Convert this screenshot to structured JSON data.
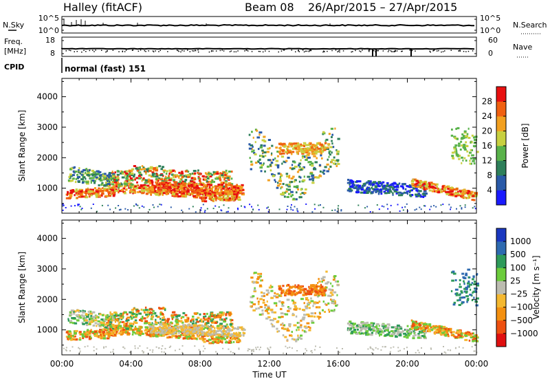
{
  "header": {
    "station": "Halley (fitACF)",
    "beam": "Beam 08",
    "date_range": "26/Apr/2015 – 27/Apr/2015"
  },
  "noise_panel": {
    "left_label": "N.Sky",
    "right_label": "N.Search",
    "left_ticks": [
      "10^5",
      "10^0"
    ],
    "right_ticks": [
      "10^5",
      "10^0"
    ]
  },
  "freq_panel": {
    "left_label": "Freq.",
    "left_unit": "[MHz]",
    "right_label": "Nave",
    "left_ticks": [
      "18",
      "8"
    ],
    "right_ticks": [
      "60",
      "0"
    ]
  },
  "cpid": {
    "label": "CPID",
    "value": "normal (fast) 151"
  },
  "x_axis": {
    "label": "Time UT",
    "ticks": [
      "00:00",
      "04:00",
      "08:00",
      "12:00",
      "16:00",
      "20:00",
      "00:00"
    ]
  },
  "colors": {
    "power": [
      "#1a1aff",
      "#2a5aa8",
      "#2e7f5a",
      "#59b24a",
      "#c8d040",
      "#f2a020",
      "#f06010",
      "#e81010"
    ],
    "velocity": [
      "#e01010",
      "#ee5010",
      "#f49010",
      "#f4b830",
      "#bcbcb0",
      "#6ccc3c",
      "#2e9a5a",
      "#2e6ab0",
      "#1a38c0"
    ]
  },
  "chart_data": [
    {
      "type": "heatmap",
      "title": "Power",
      "xlabel": "Time UT",
      "ylabel": "Slant Range [km]",
      "x_range_hours": [
        0,
        24
      ],
      "ylim": [
        180,
        4600
      ],
      "yticks": [
        "1000",
        "2000",
        "3000",
        "4000"
      ],
      "colorbar_label": "Power [dB]",
      "colorbar_ticks": [
        "4",
        "8",
        "12",
        "16",
        "20",
        "24",
        "28"
      ],
      "colorbar_range": [
        0,
        32
      ]
    },
    {
      "type": "heatmap",
      "title": "Velocity",
      "xlabel": "Time UT",
      "ylabel": "Slant Range [km]",
      "x_range_hours": [
        0,
        24
      ],
      "ylim": [
        180,
        4600
      ],
      "yticks": [
        "1000",
        "2000",
        "3000",
        "4000"
      ],
      "colorbar_label": "Velocity [m s⁻¹]",
      "colorbar_ticks": [
        "1000",
        "500",
        "100",
        "25",
        "−25",
        "−100",
        "−500",
        "−1000"
      ]
    }
  ]
}
